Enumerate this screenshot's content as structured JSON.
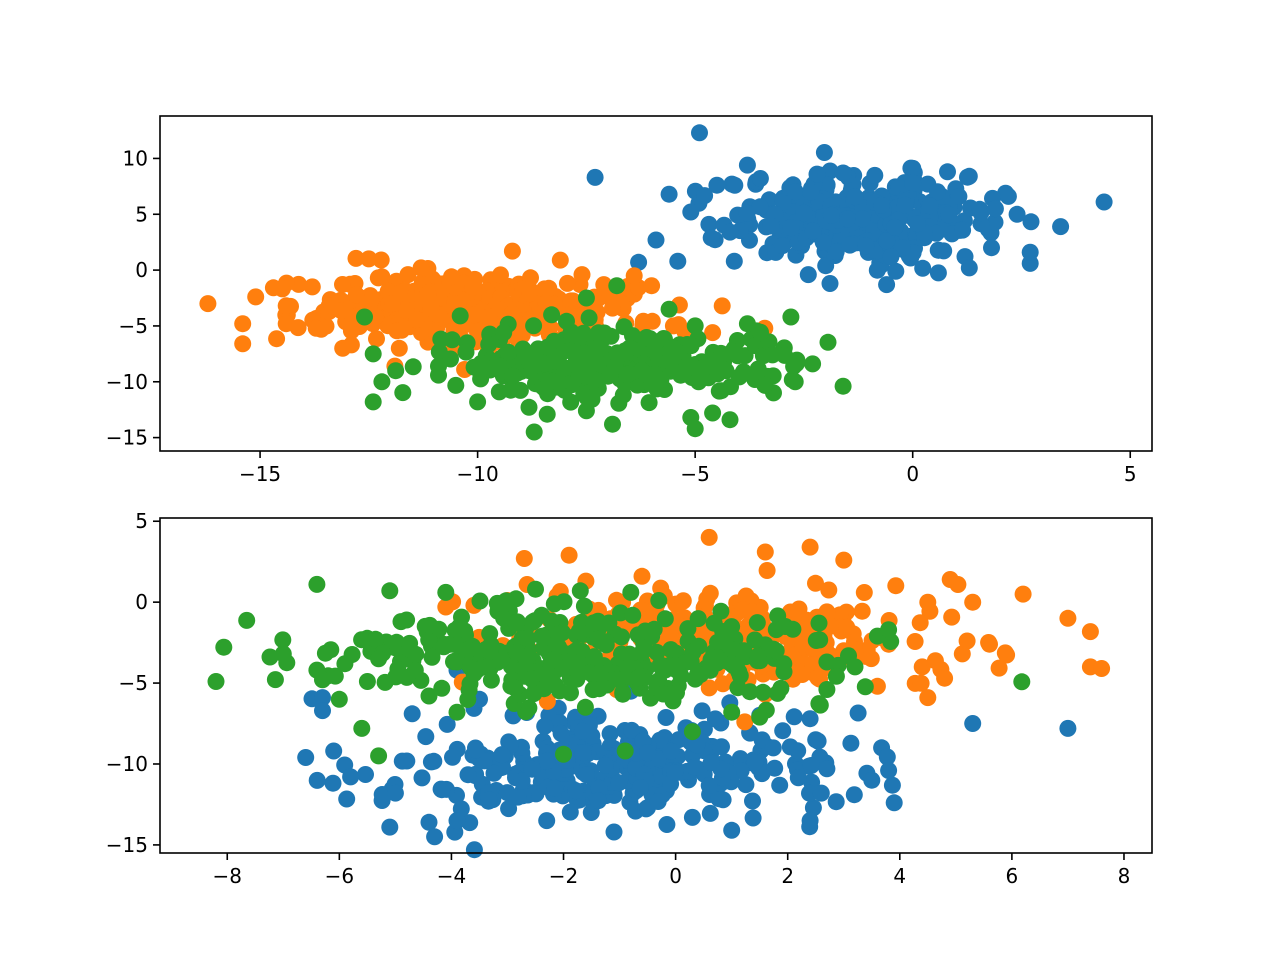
{
  "chart_data": [
    {
      "type": "scatter",
      "title": "",
      "xlabel": "",
      "ylabel": "",
      "xlim": [
        -17.3,
        5.5
      ],
      "ylim": [
        -16.2,
        13.8
      ],
      "xticks": [
        -15,
        -10,
        -5,
        0,
        5
      ],
      "yticks": [
        10,
        5,
        0,
        -5,
        -10,
        -15
      ],
      "tick_labels_x": [
        "−15",
        "−10",
        "−5",
        "0",
        "5"
      ],
      "tick_labels_y": [
        "10",
        "5",
        "0",
        "−5",
        "−10",
        "−15"
      ],
      "grid": false,
      "legend": "none",
      "series": [
        {
          "color": "#1f77b4",
          "cluster": {
            "center": [
              -1.2,
              4.8
            ],
            "spread": [
              1.5,
              1.9
            ],
            "count": 330
          },
          "points": [
            [
              -4.9,
              12.3
            ],
            [
              -7.3,
              8.3
            ],
            [
              4.4,
              6.1
            ],
            [
              3.4,
              3.9
            ],
            [
              2.7,
              0.6
            ],
            [
              2.7,
              1.6
            ],
            [
              1.3,
              0.2
            ],
            [
              -2.4,
              -0.4
            ],
            [
              -1.9,
              -1.2
            ],
            [
              -0.6,
              -1.3
            ],
            [
              -4.1,
              0.8
            ],
            [
              -5.9,
              2.7
            ],
            [
              -6.3,
              0.7
            ],
            [
              -5.4,
              0.8
            ],
            [
              -4.5,
              7.6
            ],
            [
              -3.5,
              8.2
            ],
            [
              -2.2,
              8.6
            ],
            [
              -1.6,
              8.7
            ],
            [
              0.8,
              8.8
            ],
            [
              1.3,
              8.4
            ],
            [
              2.2,
              6.6
            ],
            [
              2.4,
              5.0
            ],
            [
              -3.8,
              9.4
            ],
            [
              -5.6,
              6.8
            ],
            [
              -5.1,
              5.2
            ],
            [
              -4.2,
              3.4
            ],
            [
              -2.8,
              3.8
            ],
            [
              0.0,
              7.8
            ],
            [
              -0.5,
              1.2
            ],
            [
              1.9,
              5.5
            ]
          ]
        },
        {
          "color": "#ff7f0e",
          "cluster": {
            "center": [
              -10.2,
              -3.4
            ],
            "spread": [
              1.8,
              1.5
            ],
            "count": 330
          },
          "points": [
            [
              -16.2,
              -3.0
            ],
            [
              -15.4,
              -4.8
            ],
            [
              -15.4,
              -6.6
            ],
            [
              -15.1,
              -2.4
            ],
            [
              -14.4,
              -3.2
            ],
            [
              -13.8,
              -1.5
            ],
            [
              -12.5,
              1.0
            ],
            [
              -12.2,
              -0.6
            ],
            [
              -11.6,
              -0.4
            ],
            [
              -11.3,
              0.2
            ],
            [
              -10.6,
              -0.6
            ],
            [
              -9.2,
              1.7
            ],
            [
              -8.1,
              0.9
            ],
            [
              -7.6,
              -0.4
            ],
            [
              -7.1,
              -1.3
            ],
            [
              -6.4,
              -0.5
            ],
            [
              -6.0,
              -1.4
            ],
            [
              -6.9,
              -3.4
            ],
            [
              -6.2,
              -5.0
            ],
            [
              -5.5,
              -5.0
            ],
            [
              -4.6,
              -5.6
            ],
            [
              -3.4,
              -5.2
            ],
            [
              -12.9,
              -6.7
            ],
            [
              -13.1,
              -7.0
            ],
            [
              -11.8,
              -7.0
            ],
            [
              -10.3,
              -8.9
            ],
            [
              -11.9,
              -8.6
            ],
            [
              -14.4,
              -4.8
            ]
          ]
        },
        {
          "color": "#2ca02c",
          "cluster": {
            "center": [
              -6.8,
              -8.4
            ],
            "spread": [
              1.9,
              1.5
            ],
            "count": 330
          },
          "points": [
            [
              -12.6,
              -4.2
            ],
            [
              -12.4,
              -7.5
            ],
            [
              -12.2,
              -10.0
            ],
            [
              -12.4,
              -11.8
            ],
            [
              -10.9,
              -8.6
            ],
            [
              -10.9,
              -9.4
            ],
            [
              -10.0,
              -11.8
            ],
            [
              -8.7,
              -14.5
            ],
            [
              -8.4,
              -12.9
            ],
            [
              -7.5,
              -12.6
            ],
            [
              -6.9,
              -13.8
            ],
            [
              -5.0,
              -14.2
            ],
            [
              -4.6,
              -12.8
            ],
            [
              -4.2,
              -13.4
            ],
            [
              -5.1,
              -13.2
            ],
            [
              -3.2,
              -11.0
            ],
            [
              -2.7,
              -10.0
            ],
            [
              -2.3,
              -8.4
            ],
            [
              -1.6,
              -10.4
            ],
            [
              -2.8,
              -4.2
            ],
            [
              -3.8,
              -4.8
            ],
            [
              -5.0,
              -5.0
            ],
            [
              -5.6,
              -3.5
            ],
            [
              -7.5,
              -2.5
            ],
            [
              -6.8,
              -1.4
            ],
            [
              -8.3,
              -4.0
            ],
            [
              -10.4,
              -4.1
            ],
            [
              -9.4,
              -5.6
            ],
            [
              -4.4,
              -10.8
            ],
            [
              -3.4,
              -10.3
            ]
          ]
        }
      ]
    },
    {
      "type": "scatter",
      "title": "",
      "xlabel": "",
      "ylabel": "",
      "xlim": [
        -9.2,
        8.5
      ],
      "ylim": [
        -15.5,
        5.2
      ],
      "xticks": [
        -8,
        -6,
        -4,
        -2,
        0,
        2,
        4,
        6,
        8
      ],
      "yticks": [
        5,
        0,
        -5,
        -10,
        -15
      ],
      "tick_labels_x": [
        "−8",
        "−6",
        "−4",
        "−2",
        "0",
        "2",
        "4",
        "6",
        "8"
      ],
      "tick_labels_y": [
        "5",
        "0",
        "−5",
        "−10",
        "−15"
      ],
      "grid": false,
      "legend": "none",
      "series": [
        {
          "color": "#1f77b4",
          "cluster": {
            "center": [
              -1.2,
              -10.2
            ],
            "spread": [
              1.9,
              1.6
            ],
            "count": 330
          },
          "points": [
            [
              -6.6,
              -9.6
            ],
            [
              -6.3,
              -5.9
            ],
            [
              -6.3,
              -6.7
            ],
            [
              -6.1,
              -9.2
            ],
            [
              -5.8,
              -10.8
            ],
            [
              -5.1,
              -13.9
            ],
            [
              -4.4,
              -13.6
            ],
            [
              -4.3,
              -14.5
            ],
            [
              -3.9,
              -13.5
            ],
            [
              -5.0,
              -11.8
            ],
            [
              -2.3,
              -13.5
            ],
            [
              -1.1,
              -14.2
            ],
            [
              0.3,
              -13.3
            ],
            [
              1.0,
              -14.1
            ],
            [
              2.4,
              -13.5
            ],
            [
              2.6,
              -11.8
            ],
            [
              2.7,
              -10.3
            ],
            [
              3.5,
              -11.0
            ],
            [
              3.8,
              -10.4
            ],
            [
              3.9,
              -12.4
            ],
            [
              5.3,
              -7.5
            ],
            [
              7.0,
              -7.8
            ],
            [
              2.4,
              -7.2
            ],
            [
              2.5,
              -8.5
            ],
            [
              1.5,
              -7.0
            ],
            [
              -3.9,
              -4.2
            ],
            [
              -4.7,
              -6.9
            ],
            [
              -3.5,
              -6.0
            ],
            [
              -2.9,
              -7.0
            ],
            [
              -0.8,
              -5.5
            ]
          ]
        },
        {
          "color": "#ff7f0e",
          "cluster": {
            "center": [
              0.8,
              -2.1
            ],
            "spread": [
              2.0,
              1.4
            ],
            "count": 330
          },
          "points": [
            [
              -2.7,
              2.7
            ],
            [
              -1.9,
              2.9
            ],
            [
              0.6,
              4.0
            ],
            [
              1.6,
              3.1
            ],
            [
              2.4,
              3.4
            ],
            [
              3.0,
              2.6
            ],
            [
              4.9,
              1.4
            ],
            [
              6.2,
              0.5
            ],
            [
              4.5,
              0.0
            ],
            [
              5.3,
              0.0
            ],
            [
              7.0,
              -1.0
            ],
            [
              5.6,
              -2.6
            ],
            [
              5.2,
              -2.4
            ],
            [
              7.4,
              -4.0
            ],
            [
              7.6,
              -4.1
            ],
            [
              4.5,
              -5.9
            ],
            [
              4.8,
              -4.7
            ],
            [
              4.4,
              -4.0
            ],
            [
              3.6,
              -5.2
            ],
            [
              3.0,
              -3.0
            ],
            [
              2.7,
              -0.6
            ],
            [
              -3.6,
              -0.2
            ],
            [
              -4.1,
              -0.3
            ],
            [
              -3.0,
              0.1
            ],
            [
              -1.6,
              1.3
            ],
            [
              -0.6,
              1.6
            ],
            [
              1.6,
              -5.7
            ],
            [
              0.6,
              -5.3
            ],
            [
              3.8,
              -2.6
            ],
            [
              2.0,
              -1.4
            ]
          ]
        },
        {
          "color": "#2ca02c",
          "cluster": {
            "center": [
              -1.6,
              -3.4
            ],
            "spread": [
              2.2,
              1.5
            ],
            "count": 330
          },
          "points": [
            [
              -8.2,
              -4.9
            ],
            [
              -7.0,
              -3.2
            ],
            [
              -6.4,
              1.1
            ],
            [
              -6.4,
              -4.2
            ],
            [
              -6.3,
              -4.8
            ],
            [
              -6.0,
              -6.0
            ],
            [
              -5.9,
              -3.8
            ],
            [
              -5.5,
              -4.9
            ],
            [
              -5.6,
              -7.8
            ],
            [
              -5.3,
              -9.5
            ],
            [
              -5.1,
              0.7
            ],
            [
              -4.8,
              -1.1
            ],
            [
              -4.9,
              -1.2
            ],
            [
              -4.1,
              0.6
            ],
            [
              -3.9,
              -6.8
            ],
            [
              -2.5,
              0.8
            ],
            [
              -1.7,
              0.7
            ],
            [
              -0.8,
              0.6
            ],
            [
              -0.3,
              0.1
            ],
            [
              -2.0,
              -9.4
            ],
            [
              -0.9,
              -9.2
            ],
            [
              0.3,
              -8.0
            ],
            [
              1.0,
              -6.8
            ],
            [
              1.5,
              -7.1
            ],
            [
              2.7,
              -5.4
            ],
            [
              3.2,
              -4.0
            ],
            [
              3.6,
              -2.1
            ],
            [
              3.8,
              -1.7
            ],
            [
              2.7,
              -3.7
            ],
            [
              -5.3,
              -3.5
            ]
          ]
        }
      ]
    }
  ]
}
